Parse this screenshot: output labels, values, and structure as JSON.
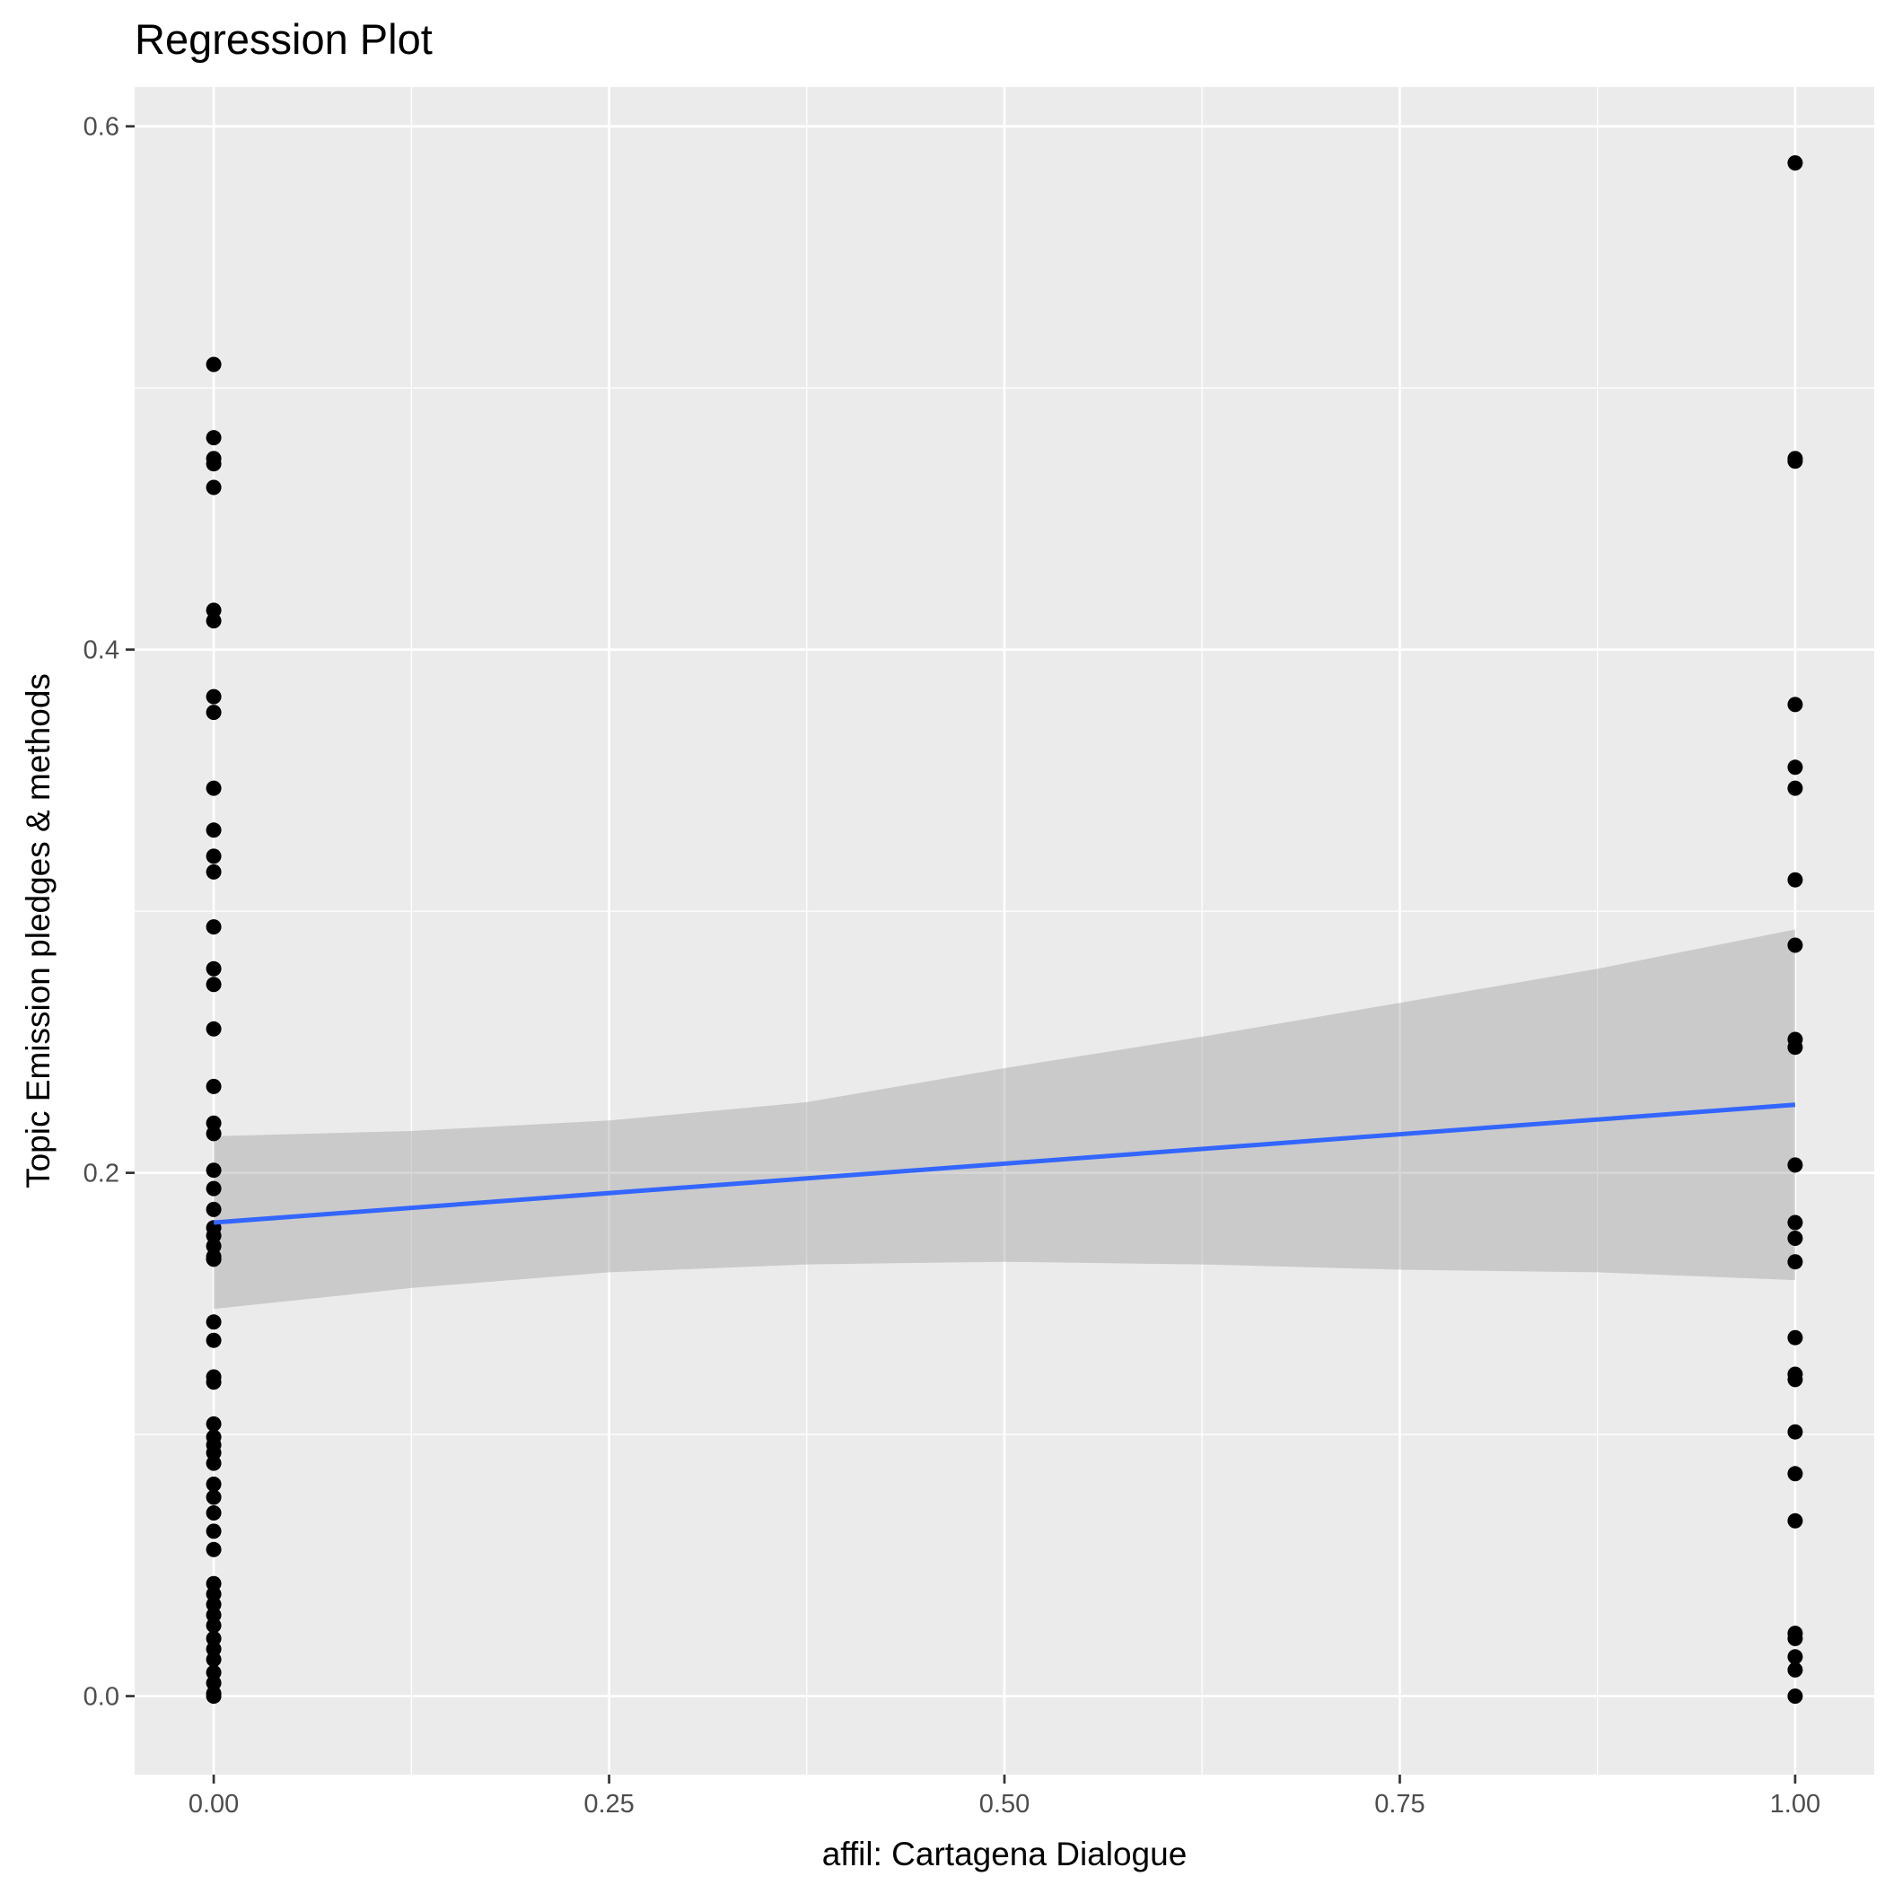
{
  "chart_data": {
    "type": "scatter",
    "title": "Regression Plot",
    "xlabel": "affil: Cartagena Dialogue",
    "ylabel": "Topic Emission pledges & methods",
    "xlim": [
      -0.05,
      1.05
    ],
    "ylim": [
      -0.03,
      0.615
    ],
    "x_ticks": [
      0.0,
      0.25,
      0.5,
      0.75,
      1.0
    ],
    "x_tick_labels": [
      "0.00",
      "0.25",
      "0.50",
      "0.75",
      "1.00"
    ],
    "y_ticks": [
      0.0,
      0.2,
      0.4,
      0.6
    ],
    "y_tick_labels": [
      "0.0",
      "0.2",
      "0.4",
      "0.6"
    ],
    "grid": true,
    "legend": "none",
    "series": [
      {
        "kind": "points",
        "color": "#000000",
        "points": [
          [
            0,
            0.509
          ],
          [
            0,
            0.481
          ],
          [
            0,
            0.473
          ],
          [
            0,
            0.471
          ],
          [
            0,
            0.462
          ],
          [
            0,
            0.415
          ],
          [
            0,
            0.411
          ],
          [
            0,
            0.382
          ],
          [
            0,
            0.376
          ],
          [
            0,
            0.347
          ],
          [
            0,
            0.331
          ],
          [
            0,
            0.321
          ],
          [
            0,
            0.315
          ],
          [
            0,
            0.294
          ],
          [
            0,
            0.278
          ],
          [
            0,
            0.272
          ],
          [
            0,
            0.255
          ],
          [
            0,
            0.233
          ],
          [
            0,
            0.219
          ],
          [
            0,
            0.215
          ],
          [
            0,
            0.201
          ],
          [
            0,
            0.194
          ],
          [
            0,
            0.186
          ],
          [
            0,
            0.179
          ],
          [
            0,
            0.176
          ],
          [
            0,
            0.172
          ],
          [
            0,
            0.168
          ],
          [
            0,
            0.167
          ],
          [
            0,
            0.167
          ],
          [
            0,
            0.143
          ],
          [
            0,
            0.136
          ],
          [
            0,
            0.122
          ],
          [
            0,
            0.12
          ],
          [
            0,
            0.104
          ],
          [
            0,
            0.099
          ],
          [
            0,
            0.096
          ],
          [
            0,
            0.093
          ],
          [
            0,
            0.089
          ],
          [
            0,
            0.081
          ],
          [
            0,
            0.076
          ],
          [
            0,
            0.07
          ],
          [
            0,
            0.063
          ],
          [
            0,
            0.056
          ],
          [
            0,
            0.043
          ],
          [
            0,
            0.039
          ],
          [
            0,
            0.035
          ],
          [
            0,
            0.031
          ],
          [
            0,
            0.027
          ],
          [
            0,
            0.022
          ],
          [
            0,
            0.018
          ],
          [
            0,
            0.014
          ],
          [
            0,
            0.009
          ],
          [
            0,
            0.005
          ],
          [
            0,
            0.001
          ],
          [
            0,
            0.0
          ],
          [
            1,
            0.586
          ],
          [
            1,
            0.472
          ],
          [
            1,
            0.473
          ],
          [
            1,
            0.379
          ],
          [
            1,
            0.355
          ],
          [
            1,
            0.347
          ],
          [
            1,
            0.312
          ],
          [
            1,
            0.287
          ],
          [
            1,
            0.251
          ],
          [
            1,
            0.248
          ],
          [
            1,
            0.203
          ],
          [
            1,
            0.181
          ],
          [
            1,
            0.175
          ],
          [
            1,
            0.166
          ],
          [
            1,
            0.137
          ],
          [
            1,
            0.123
          ],
          [
            1,
            0.121
          ],
          [
            1,
            0.101
          ],
          [
            1,
            0.085
          ],
          [
            1,
            0.067
          ],
          [
            1,
            0.024
          ],
          [
            1,
            0.022
          ],
          [
            1,
            0.015
          ],
          [
            1,
            0.01
          ],
          [
            1,
            0.0
          ]
        ]
      },
      {
        "kind": "regression-line",
        "color": "#3366ff",
        "x": [
          0,
          1
        ],
        "y": [
          0.181,
          0.226
        ]
      },
      {
        "kind": "confidence-band",
        "color": "#999999",
        "x": [
          0,
          0.125,
          0.25,
          0.375,
          0.5,
          0.625,
          0.75,
          0.875,
          1
        ],
        "upper": [
          0.214,
          0.216,
          0.22,
          0.227,
          0.24,
          0.252,
          0.265,
          0.278,
          0.293
        ],
        "lower": [
          0.148,
          0.156,
          0.162,
          0.165,
          0.166,
          0.165,
          0.163,
          0.162,
          0.159
        ]
      }
    ]
  }
}
